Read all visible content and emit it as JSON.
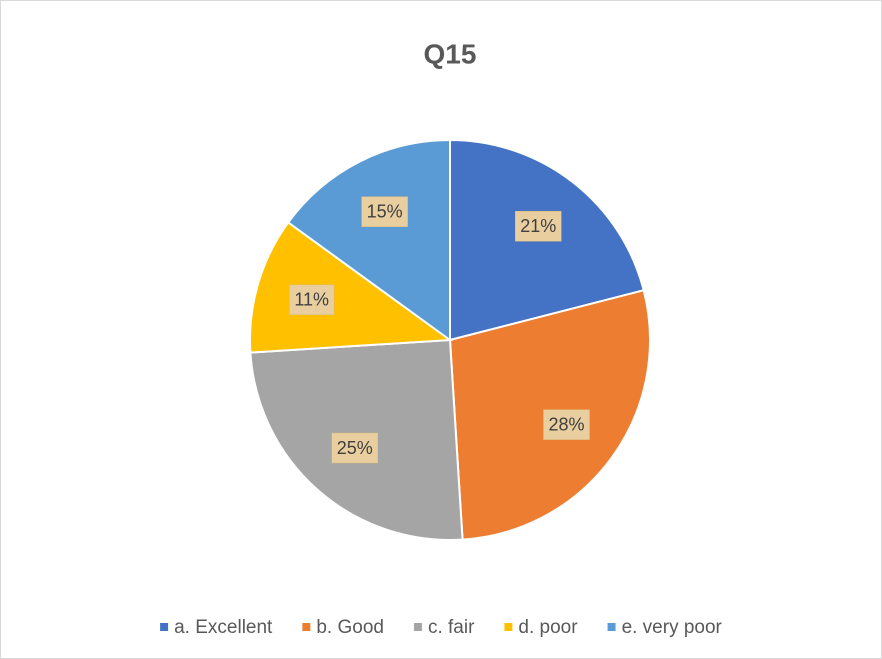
{
  "chart_data": {
    "type": "pie",
    "title": "Q15",
    "categories": [
      "a. Excellent",
      "b. Good",
      "c. fair",
      "d. poor",
      "e. very poor"
    ],
    "values": [
      21,
      28,
      25,
      11,
      15
    ],
    "value_labels": [
      "21%",
      "28%",
      "25%",
      "11%",
      "15%"
    ],
    "colors": [
      "#4472c4",
      "#ed7d31",
      "#a5a5a5",
      "#ffc000",
      "#5b9bd5"
    ],
    "legend": "bottom"
  }
}
